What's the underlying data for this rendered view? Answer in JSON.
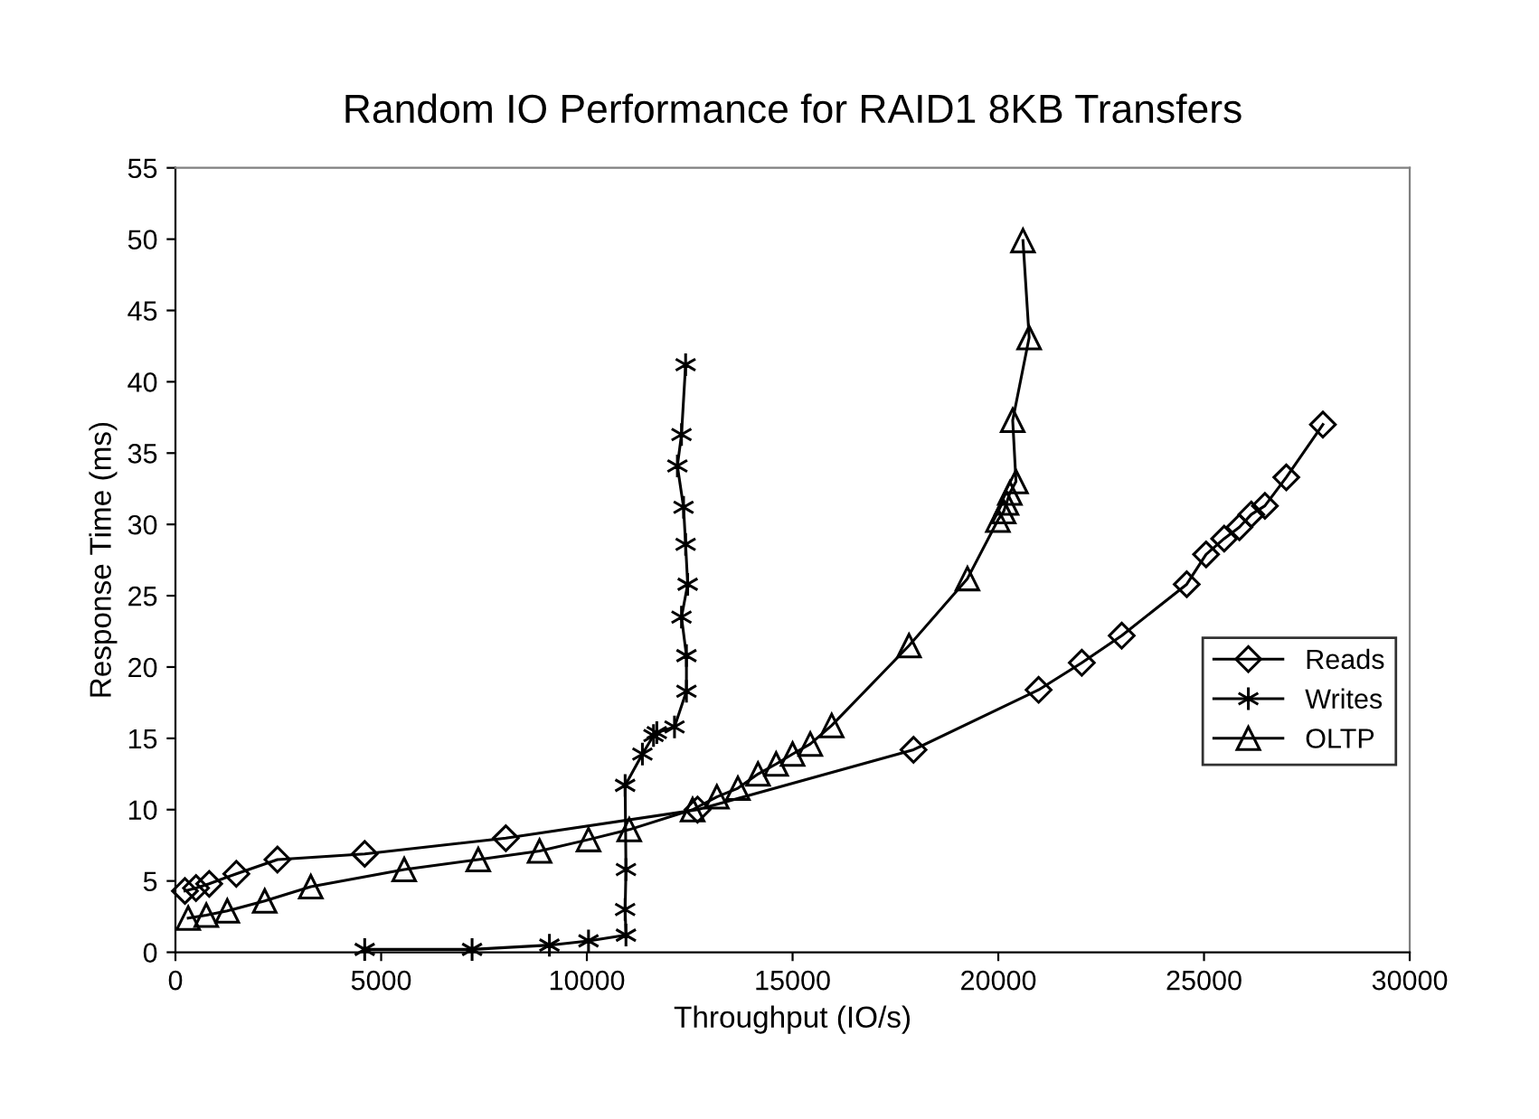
{
  "chart_data": {
    "type": "line",
    "title": "Random IO Performance for RAID1 8KB Transfers",
    "xlabel": "Throughput (IO/s)",
    "ylabel": "Response Time (ms)",
    "xlim": [
      0,
      30000
    ],
    "xticks": [
      0,
      5000,
      10000,
      15000,
      20000,
      25000,
      30000
    ],
    "ylim": [
      0,
      55
    ],
    "yticks": [
      0,
      5,
      10,
      15,
      20,
      25,
      30,
      35,
      40,
      45,
      50,
      55
    ],
    "grid": false,
    "legend": "right",
    "line_style": "solid",
    "series": [
      {
        "name": "Reads",
        "color": "#000000",
        "marker": "diamond",
        "x": [
          230,
          500,
          820,
          1480,
          2480,
          4600,
          8030,
          12690,
          17940,
          20980,
          22030,
          23000,
          24580,
          25050,
          25490,
          25860,
          26150,
          26480,
          27000,
          27890
        ],
        "values": [
          4.3,
          4.5,
          4.8,
          5.5,
          6.5,
          6.9,
          8.0,
          10.0,
          14.2,
          18.4,
          20.3,
          22.2,
          25.8,
          27.9,
          29.0,
          29.8,
          30.7,
          31.3,
          33.3,
          37.0
        ]
      },
      {
        "name": "Writes",
        "color": "#000000",
        "marker": "cross",
        "x": [
          4600,
          7210,
          9090,
          10040,
          10950,
          10930,
          10950,
          10930,
          11350,
          11620,
          11700,
          12130,
          12420,
          12420,
          12300,
          12450,
          12400,
          12350,
          12200,
          12300,
          12400
        ],
        "values": [
          0.2,
          0.2,
          0.5,
          0.8,
          1.2,
          3.0,
          5.8,
          11.7,
          13.9,
          15.2,
          15.4,
          15.8,
          18.3,
          20.8,
          23.5,
          25.8,
          28.6,
          31.2,
          34.1,
          36.3,
          41.2
        ]
      },
      {
        "name": "OLTP",
        "color": "#000000",
        "marker": "triangle",
        "x": [
          310,
          750,
          1260,
          2170,
          3290,
          5560,
          7360,
          8850,
          10040,
          11030,
          12570,
          13160,
          13670,
          14160,
          14600,
          15000,
          15430,
          15950,
          17830,
          19250,
          19990,
          20130,
          20200,
          20280,
          20430,
          20350,
          20750,
          20600
        ],
        "values": [
          2.4,
          2.6,
          2.9,
          3.6,
          4.6,
          5.8,
          6.5,
          7.1,
          7.9,
          8.6,
          10.0,
          10.9,
          11.5,
          12.5,
          13.2,
          13.9,
          14.6,
          15.9,
          21.5,
          26.2,
          30.3,
          30.9,
          31.5,
          32.2,
          33.0,
          37.3,
          43.1,
          49.9
        ]
      }
    ]
  }
}
